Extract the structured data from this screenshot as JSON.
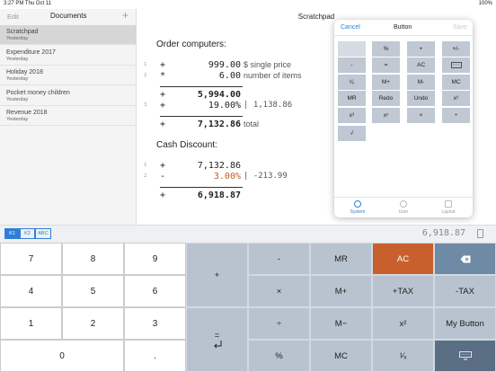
{
  "status_bar": {
    "time": "3:27 PM  Thu Oct 11",
    "battery": "100%"
  },
  "sidebar": {
    "edit": "Edit",
    "title": "Documents",
    "add": "+",
    "documents": [
      {
        "name": "Scratchpad",
        "date": "Yesterday"
      },
      {
        "name": "Expenditure 2017",
        "date": "Yesterday"
      },
      {
        "name": "Holiday 2018",
        "date": "Yesterday"
      },
      {
        "name": "Pocket money children",
        "date": "Yesterday"
      },
      {
        "name": "Revenue 2018",
        "date": "Yesterday"
      }
    ]
  },
  "document": {
    "title": "Scratchpad",
    "sections": [
      {
        "heading": "Order computers:",
        "lines": [
          {
            "number": "1",
            "op": "+",
            "value": "999.00",
            "note": "$ single price"
          },
          {
            "number": "2",
            "op": "*",
            "value": "6.00",
            "note": "number of items"
          },
          {
            "op": "+",
            "value": "5,994.00",
            "bold": true
          },
          {
            "number": "3",
            "op": "+",
            "value": "19.00%",
            "note": "| 1,138.86"
          },
          {
            "op": "+",
            "value": "7,132.86",
            "note": "total",
            "bold": true
          }
        ]
      },
      {
        "heading": "Cash Discount:",
        "lines": [
          {
            "number": "1",
            "op": "+",
            "value": "7,132.86"
          },
          {
            "number": "2",
            "op": "-",
            "value": "3.00%",
            "note": "| -213.99",
            "color": "#c0601e"
          },
          {
            "op": "+",
            "value": "6,918.87",
            "bold": true
          }
        ]
      }
    ]
  },
  "popover": {
    "cancel": "Cancel",
    "title": "Button",
    "save": "Save",
    "buttons": [
      [
        null,
        "%",
        "+",
        "+/-"
      ],
      [
        "-",
        "=",
        "AC",
        null
      ],
      [
        "¹⁄ₓ",
        "M+",
        "M-",
        "MC"
      ],
      [
        "MR",
        "Redo",
        "Undo",
        "x²"
      ],
      [
        "x³",
        "xⁿ",
        "×",
        "÷"
      ],
      [
        "√"
      ]
    ],
    "tabs": [
      "System",
      "User",
      "Layout"
    ]
  },
  "toolbar": {
    "keyboards": [
      "K1",
      "K2",
      "ABC"
    ],
    "result": "6,918.87"
  },
  "keypad": {
    "numbers": [
      [
        "7",
        "8",
        "9"
      ],
      [
        "4",
        "5",
        "6"
      ],
      [
        "1",
        "2",
        "3"
      ],
      [
        "0",
        "."
      ]
    ],
    "functions": [
      [
        "+",
        "="
      ],
      [
        "-",
        "×",
        "÷",
        "%"
      ],
      [
        "MR",
        "M+",
        "M−",
        "MC"
      ],
      [
        "AC",
        "+TAX",
        "x²",
        "¹⁄ₓ"
      ],
      [
        null,
        "-TAX",
        "My Button",
        null
      ]
    ]
  }
}
